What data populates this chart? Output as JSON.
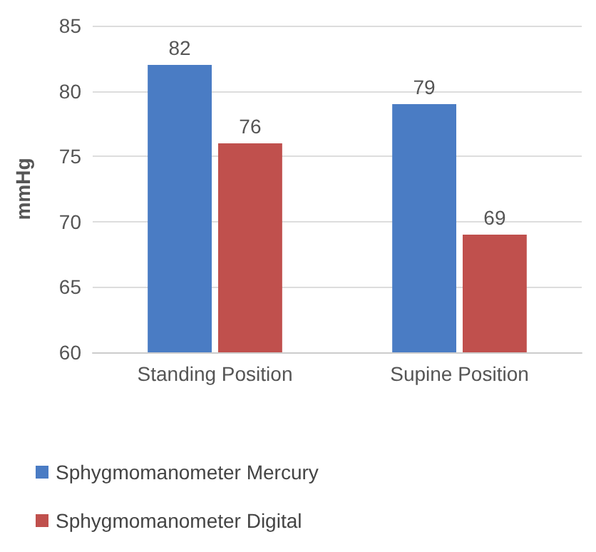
{
  "chart_data": {
    "type": "bar",
    "ylabel": "mmHg",
    "categories": [
      "Standing Position",
      "Supine Position"
    ],
    "series": [
      {
        "name": "Sphygmomanometer Mercury",
        "color": "#4a7cc4",
        "values": [
          82,
          79
        ]
      },
      {
        "name": "Sphygmomanometer Digital",
        "color": "#c0504d",
        "values": [
          76,
          69
        ]
      }
    ],
    "ylim": [
      60,
      85
    ],
    "yticks": [
      60,
      65,
      70,
      75,
      80,
      85
    ],
    "grid": "y",
    "legend": "bottom",
    "data_labels": true
  }
}
